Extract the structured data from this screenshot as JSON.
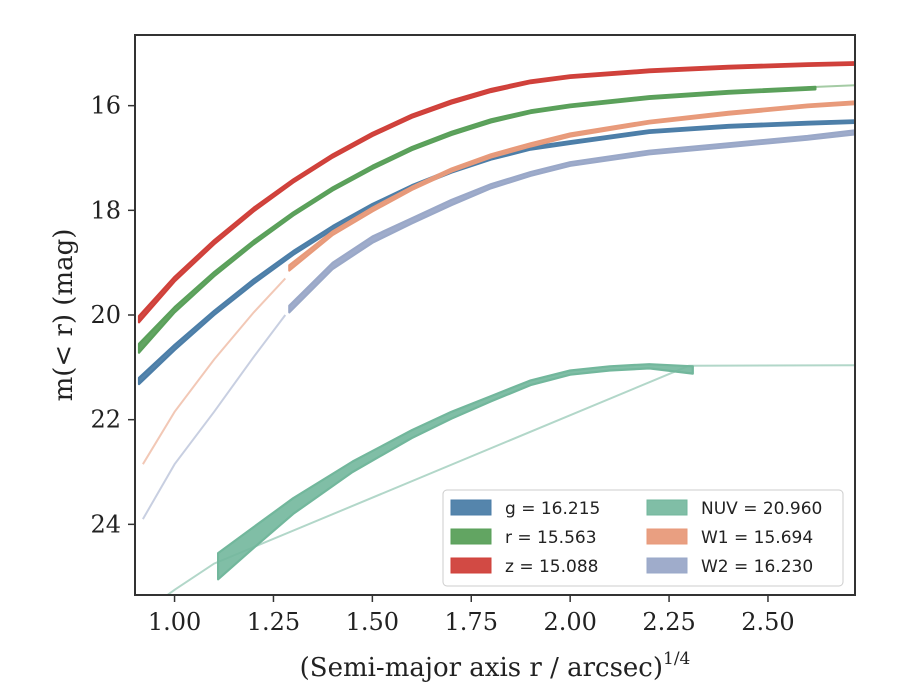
{
  "chart_data": {
    "type": "line",
    "xlabel": "(Semi-major axis r / arcsec)",
    "xlabel_superscript": "1/4",
    "ylabel": "m(< r) (mag)",
    "xlim": [
      0.9,
      2.72
    ],
    "ylim": [
      25.35,
      14.65
    ],
    "y_inverted": true,
    "grid": false,
    "legend_placement": "lower-right",
    "x_ticks": [
      "1.00",
      "1.25",
      "1.50",
      "1.75",
      "2.00",
      "2.25",
      "2.50"
    ],
    "y_ticks": [
      "16",
      "18",
      "20",
      "22",
      "24"
    ],
    "series": [
      {
        "name": "g = 16.215",
        "color": "#4c7ea8",
        "fill_opacity": 0.95,
        "faint": [],
        "band": [
          [
            0.91,
            21.2,
            21.32
          ],
          [
            1.0,
            20.57,
            20.67
          ],
          [
            1.1,
            19.92,
            20.0
          ],
          [
            1.2,
            19.32,
            19.4
          ],
          [
            1.3,
            18.78,
            18.85
          ],
          [
            1.4,
            18.3,
            18.37
          ],
          [
            1.5,
            17.88,
            17.94
          ],
          [
            1.6,
            17.52,
            17.58
          ],
          [
            1.7,
            17.22,
            17.28
          ],
          [
            1.8,
            16.97,
            17.03
          ],
          [
            1.9,
            16.79,
            16.84
          ],
          [
            2.0,
            16.68,
            16.73
          ],
          [
            2.2,
            16.47,
            16.52
          ],
          [
            2.4,
            16.37,
            16.42
          ],
          [
            2.6,
            16.31,
            16.36
          ],
          [
            2.72,
            16.28,
            16.33
          ]
        ]
      },
      {
        "name": "r = 15.563",
        "color": "#5aa05a",
        "fill_opacity": 0.95,
        "faint": [
          [
            2.6,
            15.65
          ],
          [
            2.72,
            15.61
          ]
        ],
        "band": [
          [
            0.91,
            20.55,
            20.72
          ],
          [
            1.0,
            19.85,
            19.95
          ],
          [
            1.1,
            19.18,
            19.26
          ],
          [
            1.2,
            18.58,
            18.65
          ],
          [
            1.3,
            18.04,
            18.1
          ],
          [
            1.4,
            17.56,
            17.62
          ],
          [
            1.5,
            17.15,
            17.21
          ],
          [
            1.6,
            16.79,
            16.85
          ],
          [
            1.7,
            16.5,
            16.56
          ],
          [
            1.8,
            16.26,
            16.32
          ],
          [
            1.9,
            16.09,
            16.14
          ],
          [
            2.0,
            15.98,
            16.03
          ],
          [
            2.2,
            15.82,
            15.87
          ],
          [
            2.4,
            15.72,
            15.77
          ],
          [
            2.62,
            15.64,
            15.69
          ]
        ]
      },
      {
        "name": "z = 15.088",
        "color": "#d0403a",
        "fill_opacity": 0.95,
        "faint": [],
        "band": [
          [
            0.91,
            20.02,
            20.14
          ],
          [
            1.0,
            19.27,
            19.36
          ],
          [
            1.1,
            18.57,
            18.65
          ],
          [
            1.2,
            17.95,
            18.02
          ],
          [
            1.3,
            17.41,
            17.47
          ],
          [
            1.4,
            16.93,
            16.99
          ],
          [
            1.5,
            16.52,
            16.58
          ],
          [
            1.6,
            16.17,
            16.23
          ],
          [
            1.7,
            15.9,
            15.96
          ],
          [
            1.8,
            15.68,
            15.74
          ],
          [
            1.9,
            15.52,
            15.57
          ],
          [
            2.0,
            15.42,
            15.47
          ],
          [
            2.2,
            15.31,
            15.36
          ],
          [
            2.4,
            15.24,
            15.29
          ],
          [
            2.6,
            15.19,
            15.24
          ],
          [
            2.72,
            15.17,
            15.22
          ]
        ]
      },
      {
        "name": "NUV = 20.960",
        "color": "#72b79c",
        "fill_opacity": 0.9,
        "faint": [
          [
            0.9,
            25.8
          ],
          [
            1.0,
            25.25
          ],
          [
            1.1,
            24.75
          ],
          [
            2.3,
            20.97
          ],
          [
            2.72,
            20.96
          ]
        ],
        "band": [
          [
            1.11,
            24.55,
            25.05
          ],
          [
            1.2,
            24.05,
            24.45
          ],
          [
            1.3,
            23.5,
            23.8
          ],
          [
            1.45,
            22.8,
            23.0
          ],
          [
            1.6,
            22.2,
            22.35
          ],
          [
            1.7,
            21.85,
            21.98
          ],
          [
            1.8,
            21.55,
            21.65
          ],
          [
            1.9,
            21.25,
            21.34
          ],
          [
            2.0,
            21.06,
            21.14
          ],
          [
            2.1,
            20.98,
            21.06
          ],
          [
            2.2,
            20.94,
            21.02
          ],
          [
            2.31,
            20.98,
            21.12
          ]
        ]
      },
      {
        "name": "W1 = 15.694",
        "color": "#e89a7a",
        "fill_opacity": 0.95,
        "faint": [
          [
            0.92,
            22.85
          ],
          [
            1.0,
            21.85
          ],
          [
            1.1,
            20.85
          ],
          [
            1.2,
            19.95
          ],
          [
            1.28,
            19.3
          ]
        ],
        "band": [
          [
            1.29,
            19.05,
            19.15
          ],
          [
            1.4,
            18.4,
            18.47
          ],
          [
            1.5,
            17.95,
            18.02
          ],
          [
            1.6,
            17.55,
            17.61
          ],
          [
            1.7,
            17.2,
            17.26
          ],
          [
            1.8,
            16.93,
            16.99
          ],
          [
            1.9,
            16.72,
            16.78
          ],
          [
            2.0,
            16.53,
            16.59
          ],
          [
            2.2,
            16.29,
            16.34
          ],
          [
            2.4,
            16.12,
            16.17
          ],
          [
            2.6,
            15.98,
            16.03
          ],
          [
            2.72,
            15.92,
            15.97
          ]
        ]
      },
      {
        "name": "W2 = 16.230",
        "color": "#9aa8c8",
        "fill_opacity": 0.95,
        "faint": [
          [
            0.92,
            23.9
          ],
          [
            1.0,
            22.85
          ],
          [
            1.1,
            21.85
          ],
          [
            1.2,
            20.8
          ],
          [
            1.28,
            20.0
          ]
        ],
        "band": [
          [
            1.29,
            19.82,
            19.95
          ],
          [
            1.4,
            19.0,
            19.12
          ],
          [
            1.5,
            18.5,
            18.62
          ],
          [
            1.6,
            18.15,
            18.25
          ],
          [
            1.7,
            17.8,
            17.9
          ],
          [
            1.8,
            17.5,
            17.58
          ],
          [
            1.9,
            17.27,
            17.34
          ],
          [
            2.0,
            17.08,
            17.15
          ],
          [
            2.2,
            16.86,
            16.93
          ],
          [
            2.4,
            16.72,
            16.79
          ],
          [
            2.6,
            16.58,
            16.65
          ],
          [
            2.72,
            16.47,
            16.55
          ]
        ]
      }
    ]
  }
}
